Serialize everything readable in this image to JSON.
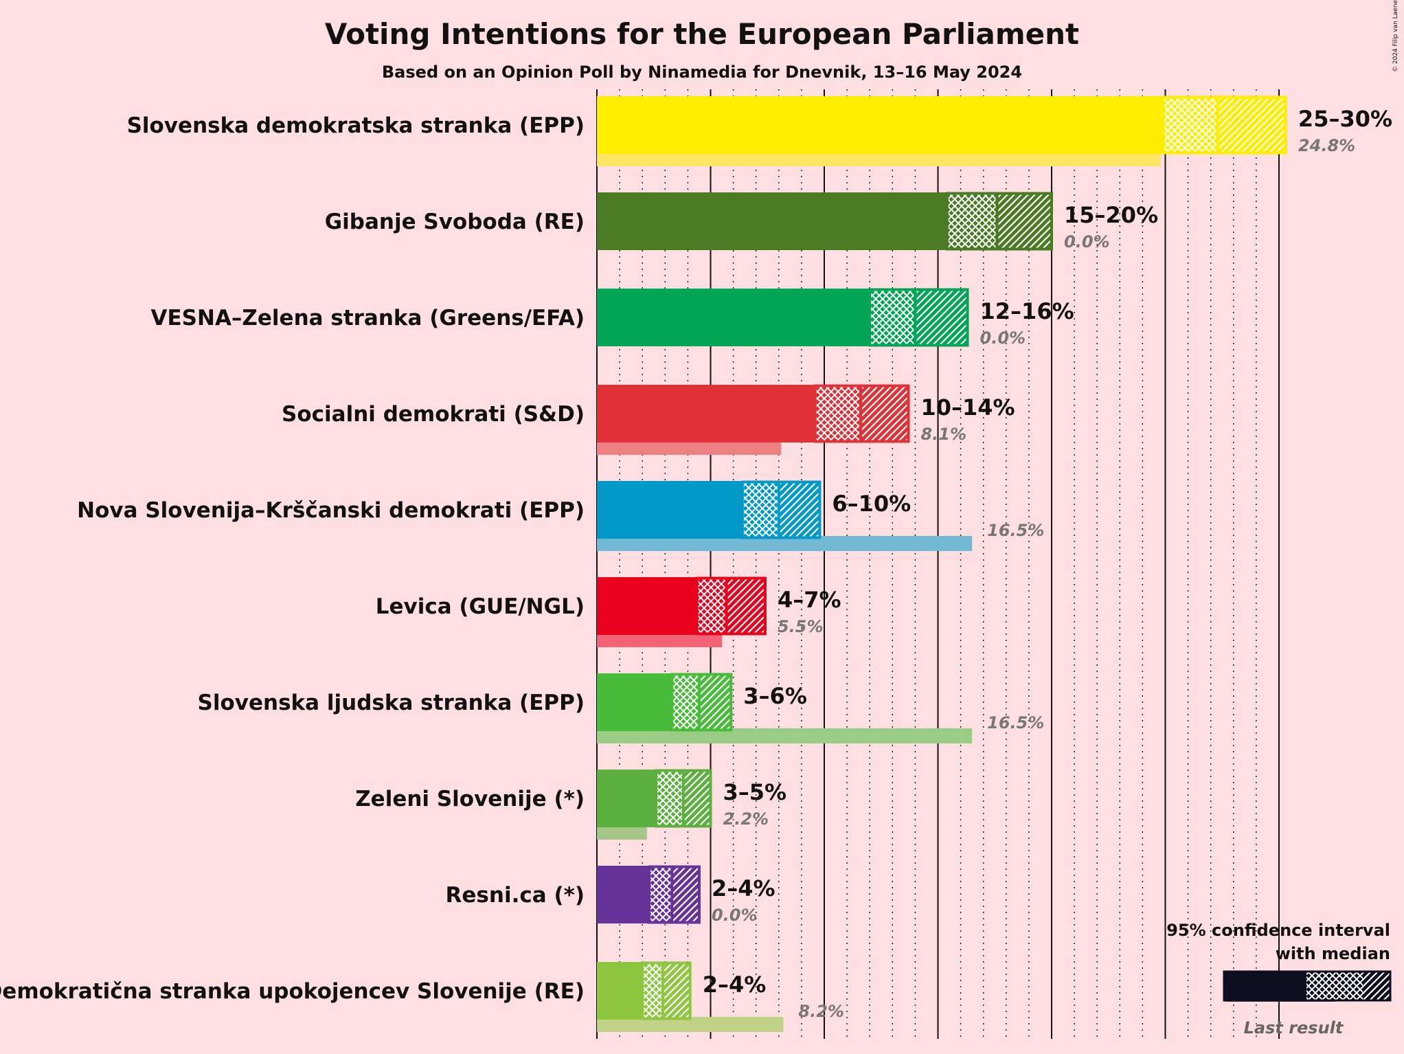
{
  "chart_data": {
    "type": "bar",
    "title": "Voting Intentions for the European Parliament",
    "subtitle": "Based on an Opinion Poll by Ninamedia for Dnevnik, 13–16 May 2024",
    "copyright": "© 2024 Filip van Laenen",
    "xlim": [
      0,
      30
    ],
    "gridlines_major": [
      0,
      5,
      10,
      15,
      20,
      25,
      30
    ],
    "gridlines_minor_step": 1,
    "series": [
      {
        "name": "Slovenska demokratska stranka (EPP)",
        "color": "#FFED00",
        "range_label": "25–30%",
        "last_result_label": "24.8%",
        "ci_low": 24.9,
        "median": 27.3,
        "ci_high": 30.3,
        "last_result": 24.8
      },
      {
        "name": "Gibanje Svoboda (RE)",
        "color": "#4A7A24",
        "range_label": "15–20%",
        "last_result_label": "0.0%",
        "ci_low": 15.4,
        "median": 17.6,
        "ci_high": 20.0,
        "last_result": 0.0
      },
      {
        "name": "VESNA–Zelena stranka (Greens/EFA)",
        "color": "#00A556",
        "range_label": "12–16%",
        "last_result_label": "0.0%",
        "ci_low": 12.0,
        "median": 14.0,
        "ci_high": 16.3,
        "last_result": 0.0
      },
      {
        "name": "Socialni demokrati (S&D)",
        "color": "#E03236",
        "range_label": "10–14%",
        "last_result_label": "8.1%",
        "ci_low": 9.6,
        "median": 11.6,
        "ci_high": 13.7,
        "last_result": 8.1
      },
      {
        "name": "Nova Slovenija–Krščanski demokrati (EPP)",
        "color": "#0099C8",
        "range_label": "6–10%",
        "last_result_label": "16.5%",
        "ci_low": 6.4,
        "median": 8.0,
        "ci_high": 9.8,
        "last_result": 16.5
      },
      {
        "name": "Levica (GUE/NGL)",
        "color": "#E8001C",
        "range_label": "4–7%",
        "last_result_label": "5.5%",
        "ci_low": 4.4,
        "median": 5.7,
        "ci_high": 7.4,
        "last_result": 5.5
      },
      {
        "name": "Slovenska ljudska stranka (EPP)",
        "color": "#46BC38",
        "range_label": "3–6%",
        "last_result_label": "16.5%",
        "ci_low": 3.3,
        "median": 4.5,
        "ci_high": 5.9,
        "last_result": 16.5
      },
      {
        "name": "Zeleni Slovenije (*)",
        "color": "#5CB040",
        "range_label": "3–5%",
        "last_result_label": "2.2%",
        "ci_low": 2.6,
        "median": 3.8,
        "ci_high": 5.0,
        "last_result": 2.2
      },
      {
        "name": "Resni.ca (*)",
        "color": "#663399",
        "range_label": "2–4%",
        "last_result_label": "0.0%",
        "ci_low": 2.3,
        "median": 3.3,
        "ci_high": 4.5,
        "last_result": 0.0
      },
      {
        "name": "Demokratična stranka upokojencev Slovenije (RE)",
        "color": "#8DC63F",
        "range_label": "2–4%",
        "last_result_label": "8.2%",
        "ci_low": 2.0,
        "median": 2.9,
        "ci_high": 4.1,
        "last_result": 8.2
      }
    ],
    "legend": {
      "line1": "95% confidence interval",
      "line2": "with median",
      "last_result": "Last result",
      "placement": "bottom-right"
    }
  }
}
